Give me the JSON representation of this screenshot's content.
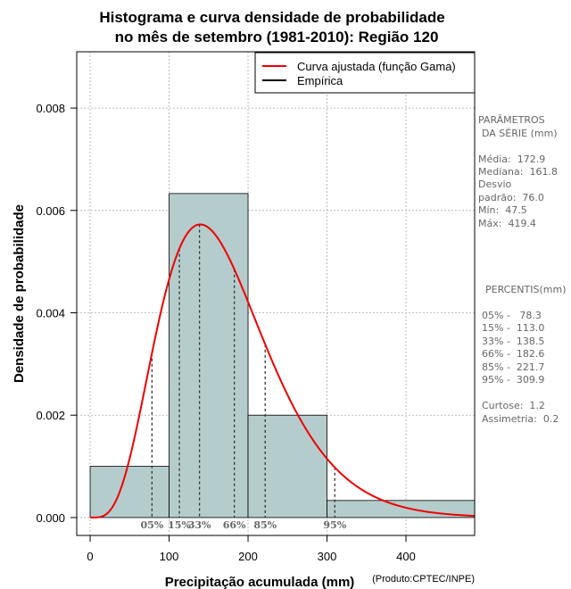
{
  "chart_data": {
    "type": "histogram",
    "title_line1": "Histograma e curva densidade de probabilidade",
    "title_line2": "no mês de setembro (1981-2010): Região 120",
    "xlabel": "Precipitação acumulada (mm)",
    "ylabel": "Densidade de probabilidade",
    "credit": "(Produto:CPTEC/INPE)",
    "xlim": [
      -17,
      487
    ],
    "ylim": [
      -0.00035,
      0.0091
    ],
    "x_ticks": [
      0,
      100,
      200,
      300,
      400
    ],
    "x_tick_labels": [
      "0",
      "100",
      "200",
      "300",
      "400"
    ],
    "y_ticks": [
      0.0,
      0.002,
      0.004,
      0.006,
      0.008
    ],
    "y_tick_labels": [
      "0.000",
      "0.002",
      "0.004",
      "0.006",
      "0.008"
    ],
    "grid": true,
    "bins": [
      {
        "x0": 0,
        "x1": 100,
        "density": 0.001
      },
      {
        "x0": 100,
        "x1": 200,
        "density": 0.00633
      },
      {
        "x0": 200,
        "x1": 300,
        "density": 0.002
      },
      {
        "x0": 300,
        "x1": 487,
        "density": 0.000333
      }
    ],
    "gamma_fit": {
      "shape": 5.17,
      "rate": 0.0299
    },
    "percentile_markers": [
      {
        "label": "05%",
        "value": 78.3
      },
      {
        "label": "15%",
        "value": 113.0
      },
      {
        "label": "33%",
        "value": 138.5
      },
      {
        "label": "66%",
        "value": 182.6
      },
      {
        "label": "85%",
        "value": 221.7
      },
      {
        "label": "95%",
        "value": 309.9
      }
    ],
    "legend": {
      "position": "top-right",
      "entries": [
        {
          "label": "Curva ajustada (função Gama)",
          "color": "#ee0000"
        },
        {
          "label": "Empírica",
          "color": "#000000"
        }
      ]
    },
    "colors": {
      "bar_fill": "#b5cccc",
      "curve": "#ee0000",
      "marker": "#333333",
      "grid": "#aaaaaa"
    }
  },
  "stats_panel": {
    "header_line1": "PARÂMETROS",
    "header_line2": "DA SÉRIE (mm)",
    "stats": [
      "Média:  172.9",
      "Mediana:  161.8",
      "Desvio",
      "padrão:  76.0",
      "Mín:  47.5",
      "Máx:  419.4"
    ],
    "percentis_header": "PERCENTIS(mm)",
    "percentis": [
      "05% -   78.3",
      "15% -  113.0",
      "33% -  138.5",
      "66% -  182.6",
      "85% -  221.7",
      "95% -  309.9"
    ],
    "shape_stats": [
      "Curtose:  1.2",
      "Assimetria:  0.2"
    ]
  }
}
